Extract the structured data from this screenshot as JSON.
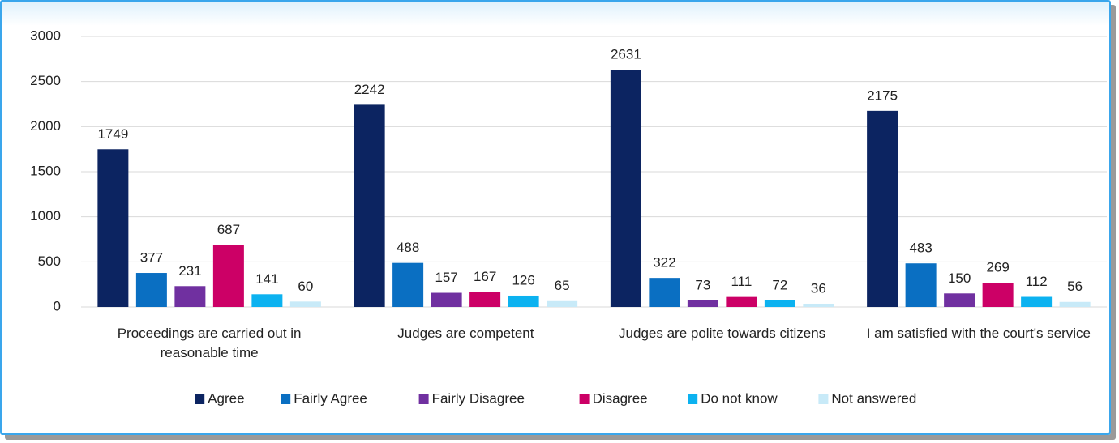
{
  "chart_data": {
    "type": "bar",
    "categories": [
      "Proceedings are carried out in reasonable time",
      "Judges are competent",
      "Judges are polite towards citizens",
      "I am satisfied with the court's service"
    ],
    "series": [
      {
        "name": "Agree",
        "color": "#0c2461",
        "values": [
          1749,
          2242,
          2631,
          2175
        ]
      },
      {
        "name": "Fairly Agree",
        "color": "#0a6fc2",
        "values": [
          377,
          488,
          322,
          483
        ]
      },
      {
        "name": "Fairly Disagree",
        "color": "#7030a0",
        "values": [
          231,
          157,
          73,
          150
        ]
      },
      {
        "name": "Disagree",
        "color": "#cc0066",
        "values": [
          687,
          167,
          111,
          269
        ]
      },
      {
        "name": "Do not know",
        "color": "#0cb2f0",
        "values": [
          141,
          126,
          72,
          112
        ]
      },
      {
        "name": "Not answered",
        "color": "#c8eaf8",
        "values": [
          60,
          65,
          36,
          56
        ]
      }
    ],
    "ylim": [
      0,
      3000
    ],
    "yticks": [
      0,
      500,
      1000,
      1500,
      2000,
      2500,
      3000
    ],
    "grid": true,
    "legend": "bottom"
  }
}
